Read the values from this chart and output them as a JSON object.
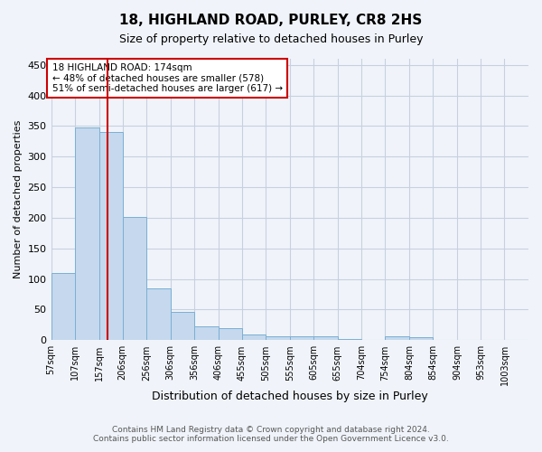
{
  "title_line1": "18, HIGHLAND ROAD, PURLEY, CR8 2HS",
  "title_line2": "Size of property relative to detached houses in Purley",
  "xlabel": "Distribution of detached houses by size in Purley",
  "ylabel": "Number of detached properties",
  "annotation_line1": "18 HIGHLAND ROAD: 174sqm",
  "annotation_line2": "← 48% of detached houses are smaller (578)",
  "annotation_line3": "51% of semi-detached houses are larger (617) →",
  "property_size": 174,
  "footer_line1": "Contains HM Land Registry data © Crown copyright and database right 2024.",
  "footer_line2": "Contains public sector information licensed under the Open Government Licence v3.0.",
  "bar_edges": [
    57,
    107,
    157,
    206,
    256,
    306,
    356,
    406,
    455,
    505,
    555,
    605,
    655,
    704,
    754,
    804,
    854,
    904,
    953,
    1003,
    1053
  ],
  "bar_heights": [
    110,
    348,
    340,
    202,
    84,
    46,
    22,
    20,
    10,
    7,
    6,
    6,
    2,
    1,
    6,
    5,
    1,
    1,
    1,
    1
  ],
  "bar_color": "#c5d8ed",
  "bar_edge_color": "#7bafd4",
  "vline_color": "#cc0000",
  "grid_color": "#c8d0e0",
  "background_color": "#f0f4fa",
  "ylim": [
    0,
    460
  ],
  "yticks": [
    0,
    50,
    100,
    150,
    200,
    250,
    300,
    350,
    400,
    450
  ]
}
